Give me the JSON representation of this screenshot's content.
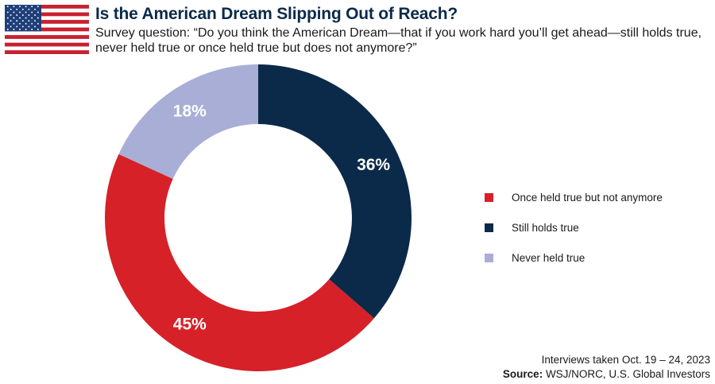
{
  "header": {
    "title": "Is the American Dream Slipping Out of Reach?",
    "subtitle": "Survey question: “Do you think the American Dream—that if you work hard you’ll get ahead—still holds true, never held true or once held true but does not anymore?”",
    "flag_icon": "us-flag-icon"
  },
  "chart_data": {
    "type": "pie",
    "style": "donut",
    "title": "Is the American Dream Slipping Out of Reach?",
    "slices": [
      {
        "name": "Still holds true",
        "value": 36,
        "label": "36%",
        "color": "#0b2a4a"
      },
      {
        "name": "Once held true but not anymore",
        "value": 45,
        "label": "45%",
        "color": "#d62128"
      },
      {
        "name": "Never held true",
        "value": 18,
        "label": "18%",
        "color": "#a8aed6"
      }
    ],
    "legend_placement": "right",
    "legend_order": [
      "Once held true but not anymore",
      "Still holds true",
      "Never held true"
    ]
  },
  "legend": {
    "items": [
      {
        "label": "Once held true but not anymore",
        "color": "#d62128"
      },
      {
        "label": "Still holds true",
        "color": "#0b2a4a"
      },
      {
        "label": "Never held true",
        "color": "#a8aed6"
      }
    ]
  },
  "footer": {
    "note": "Interviews taken Oct. 19 – 24, 2023",
    "source_key": "Source:",
    "source_value": " WSJ/NORC, U.S. Global Investors"
  }
}
